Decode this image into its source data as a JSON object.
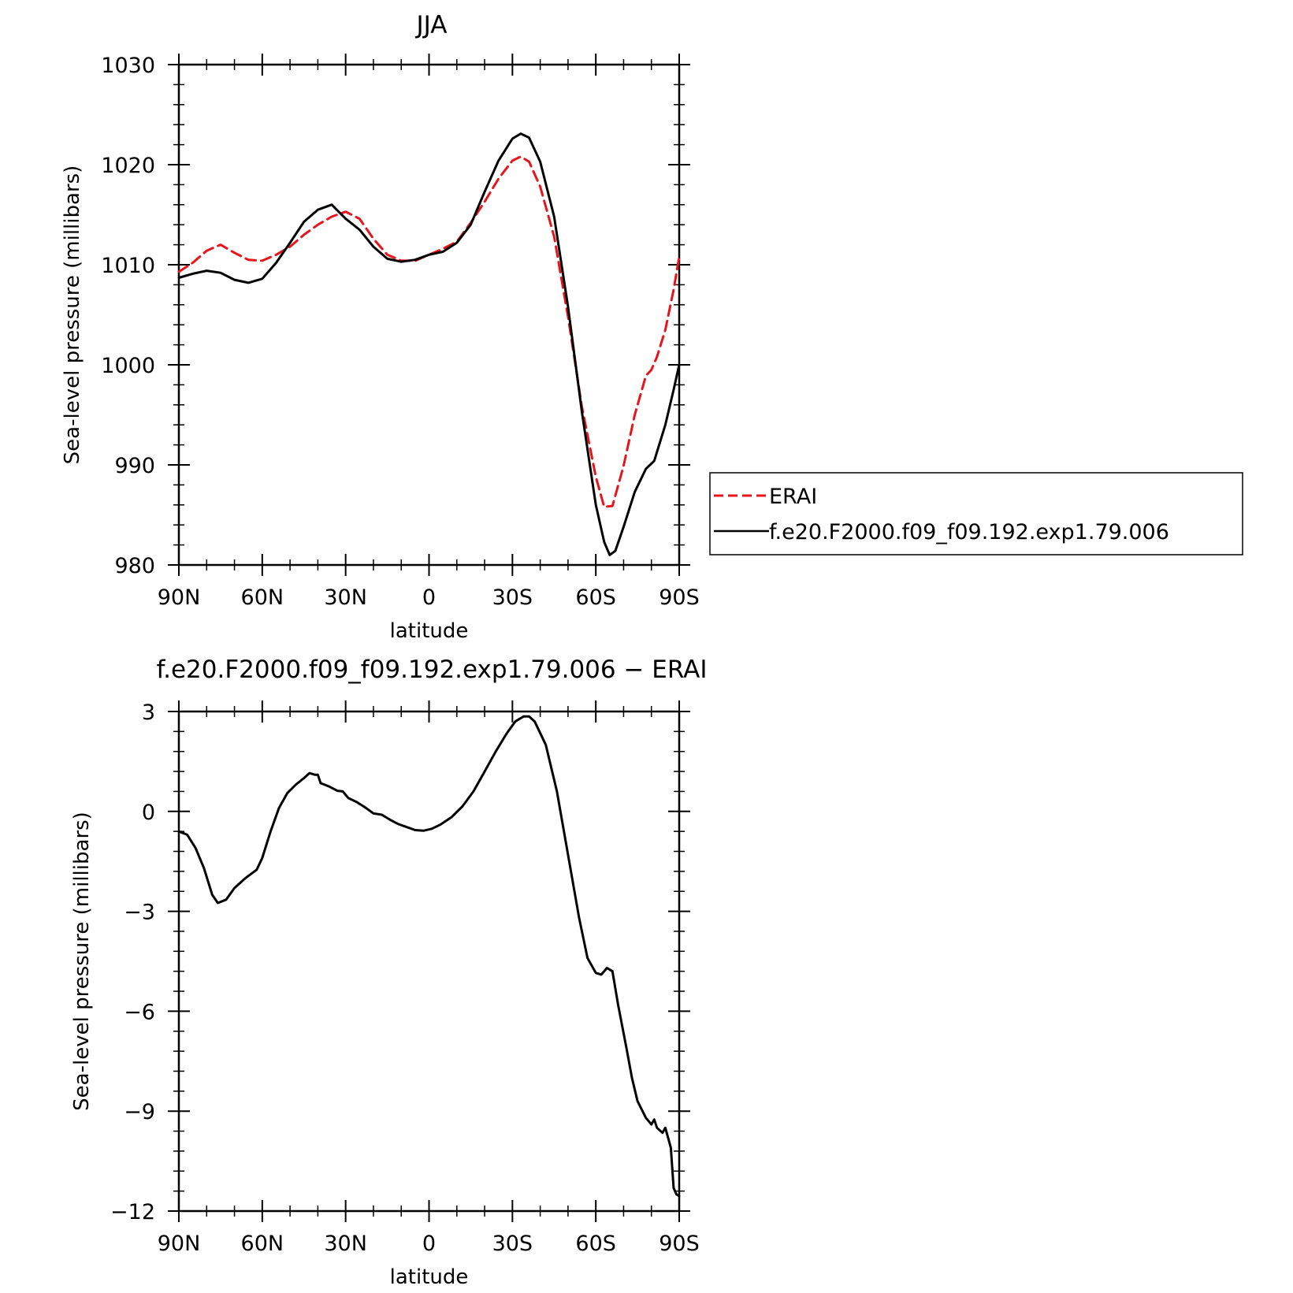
{
  "chart_data": [
    {
      "type": "line",
      "title": "JJA",
      "xlabel": "latitude",
      "ylabel": "Sea-level pressure (millibars)",
      "xlim": [
        90,
        -90
      ],
      "ylim": [
        980,
        1030
      ],
      "x_ticks": [
        90,
        60,
        30,
        0,
        -30,
        -60,
        -90
      ],
      "x_tick_labels": [
        "90N",
        "60N",
        "30N",
        "0",
        "30S",
        "60S",
        "90S"
      ],
      "y_ticks": [
        980,
        990,
        1000,
        1010,
        1020,
        1030
      ],
      "y_tick_labels": [
        "980",
        "990",
        "1000",
        "1010",
        "1020",
        "1030"
      ],
      "legend": {
        "placement": "right",
        "entries": [
          "ERAI",
          "f.e20.F2000.f09_f09.192.exp1.79.006"
        ]
      },
      "series": [
        {
          "name": "ERAI",
          "color": "#e8141c",
          "dash": true,
          "points": [
            [
              90,
              1009.3
            ],
            [
              85,
              1010.2
            ],
            [
              80,
              1011.4
            ],
            [
              75,
              1012.0
            ],
            [
              70,
              1011.2
            ],
            [
              65,
              1010.5
            ],
            [
              60,
              1010.4
            ],
            [
              55,
              1011.0
            ],
            [
              50,
              1011.8
            ],
            [
              45,
              1013.0
            ],
            [
              40,
              1014.0
            ],
            [
              35,
              1014.8
            ],
            [
              30,
              1015.3
            ],
            [
              25,
              1014.6
            ],
            [
              20,
              1012.6
            ],
            [
              15,
              1011.0
            ],
            [
              10,
              1010.4
            ],
            [
              5,
              1010.4
            ],
            [
              0,
              1011.0
            ],
            [
              -5,
              1011.6
            ],
            [
              -10,
              1012.3
            ],
            [
              -15,
              1014.2
            ],
            [
              -20,
              1016.3
            ],
            [
              -25,
              1018.6
            ],
            [
              -30,
              1020.4
            ],
            [
              -33,
              1020.8
            ],
            [
              -36,
              1020.3
            ],
            [
              -40,
              1017.8
            ],
            [
              -45,
              1012.8
            ],
            [
              -50,
              1004.8
            ],
            [
              -55,
              995.8
            ],
            [
              -60,
              988.8
            ],
            [
              -63,
              985.8
            ],
            [
              -66,
              985.9
            ],
            [
              -70,
              989.9
            ],
            [
              -74,
              995.0
            ],
            [
              -78,
              998.9
            ],
            [
              -80,
              999.5
            ],
            [
              -82,
              1000.8
            ],
            [
              -85,
              1003.5
            ],
            [
              -88,
              1007.5
            ],
            [
              -90,
              1010.8
            ]
          ]
        },
        {
          "name": "f.e20.F2000.f09_f09.192.exp1.79.006",
          "color": "#000000",
          "dash": false,
          "points": [
            [
              90,
              1008.7
            ],
            [
              85,
              1009.1
            ],
            [
              80,
              1009.4
            ],
            [
              75,
              1009.2
            ],
            [
              70,
              1008.5
            ],
            [
              65,
              1008.2
            ],
            [
              60,
              1008.6
            ],
            [
              55,
              1010.2
            ],
            [
              50,
              1012.2
            ],
            [
              45,
              1014.3
            ],
            [
              40,
              1015.5
            ],
            [
              35,
              1016.0
            ],
            [
              30,
              1014.6
            ],
            [
              25,
              1013.5
            ],
            [
              20,
              1011.8
            ],
            [
              15,
              1010.6
            ],
            [
              10,
              1010.3
            ],
            [
              5,
              1010.5
            ],
            [
              0,
              1011.0
            ],
            [
              -5,
              1011.3
            ],
            [
              -10,
              1012.2
            ],
            [
              -15,
              1014.0
            ],
            [
              -20,
              1017.3
            ],
            [
              -25,
              1020.4
            ],
            [
              -30,
              1022.6
            ],
            [
              -33,
              1023.1
            ],
            [
              -36,
              1022.7
            ],
            [
              -40,
              1020.3
            ],
            [
              -45,
              1014.8
            ],
            [
              -50,
              1005.8
            ],
            [
              -55,
              995.3
            ],
            [
              -60,
              986.0
            ],
            [
              -63,
              982.3
            ],
            [
              -65,
              981.0
            ],
            [
              -67,
              981.4
            ],
            [
              -70,
              983.8
            ],
            [
              -74,
              987.3
            ],
            [
              -78,
              989.6
            ],
            [
              -81,
              990.4
            ],
            [
              -85,
              994.0
            ],
            [
              -88,
              997.5
            ],
            [
              -90,
              1000.0
            ]
          ]
        }
      ]
    },
    {
      "type": "line",
      "title": "f.e20.F2000.f09_f09.192.exp1.79.006 − ERAI",
      "xlabel": "latitude",
      "ylabel": "Sea-level pressure (millibars)",
      "xlim": [
        90,
        -90
      ],
      "ylim": [
        -12,
        3
      ],
      "x_ticks": [
        90,
        60,
        30,
        0,
        -30,
        -60,
        -90
      ],
      "x_tick_labels": [
        "90N",
        "60N",
        "30N",
        "0",
        "30S",
        "60S",
        "90S"
      ],
      "y_ticks": [
        -12,
        -9,
        -6,
        -3,
        0,
        3
      ],
      "y_tick_labels": [
        "−12",
        "−9",
        "−6",
        "−3",
        "0",
        "3"
      ],
      "series": [
        {
          "color": "#000000",
          "dash": false,
          "points": [
            [
              90,
              -0.6
            ],
            [
              87,
              -0.7
            ],
            [
              84,
              -1.1
            ],
            [
              81,
              -1.7
            ],
            [
              78,
              -2.5
            ],
            [
              76,
              -2.75
            ],
            [
              73,
              -2.65
            ],
            [
              70,
              -2.3
            ],
            [
              66,
              -2.0
            ],
            [
              62,
              -1.75
            ],
            [
              60,
              -1.4
            ],
            [
              57,
              -0.6
            ],
            [
              54,
              0.1
            ],
            [
              51,
              0.55
            ],
            [
              48,
              0.8
            ],
            [
              45,
              1.0
            ],
            [
              43,
              1.15
            ],
            [
              41,
              1.1
            ],
            [
              40,
              1.1
            ],
            [
              39,
              0.85
            ],
            [
              36,
              0.75
            ],
            [
              33,
              0.62
            ],
            [
              31,
              0.6
            ],
            [
              29,
              0.4
            ],
            [
              26,
              0.28
            ],
            [
              23,
              0.12
            ],
            [
              20,
              -0.06
            ],
            [
              17,
              -0.1
            ],
            [
              14,
              -0.25
            ],
            [
              11,
              -0.38
            ],
            [
              8,
              -0.47
            ],
            [
              5,
              -0.56
            ],
            [
              2,
              -0.58
            ],
            [
              -1,
              -0.52
            ],
            [
              -4,
              -0.4
            ],
            [
              -8,
              -0.18
            ],
            [
              -12,
              0.15
            ],
            [
              -16,
              0.6
            ],
            [
              -20,
              1.2
            ],
            [
              -24,
              1.8
            ],
            [
              -28,
              2.35
            ],
            [
              -31,
              2.7
            ],
            [
              -34,
              2.85
            ],
            [
              -36,
              2.85
            ],
            [
              -38,
              2.7
            ],
            [
              -42,
              2.0
            ],
            [
              -46,
              0.6
            ],
            [
              -50,
              -1.3
            ],
            [
              -54,
              -3.2
            ],
            [
              -57,
              -4.4
            ],
            [
              -60,
              -4.85
            ],
            [
              -62,
              -4.9
            ],
            [
              -64,
              -4.7
            ],
            [
              -66,
              -4.8
            ],
            [
              -68,
              -5.8
            ],
            [
              -71,
              -7.1
            ],
            [
              -73,
              -8.0
            ],
            [
              -75,
              -8.7
            ],
            [
              -78,
              -9.2
            ],
            [
              -80,
              -9.4
            ],
            [
              -81,
              -9.25
            ],
            [
              -82,
              -9.5
            ],
            [
              -84,
              -9.65
            ],
            [
              -85,
              -9.5
            ],
            [
              -87,
              -10.1
            ],
            [
              -88,
              -11.3
            ],
            [
              -89,
              -11.5
            ],
            [
              -90,
              -11.55
            ]
          ]
        }
      ]
    }
  ]
}
